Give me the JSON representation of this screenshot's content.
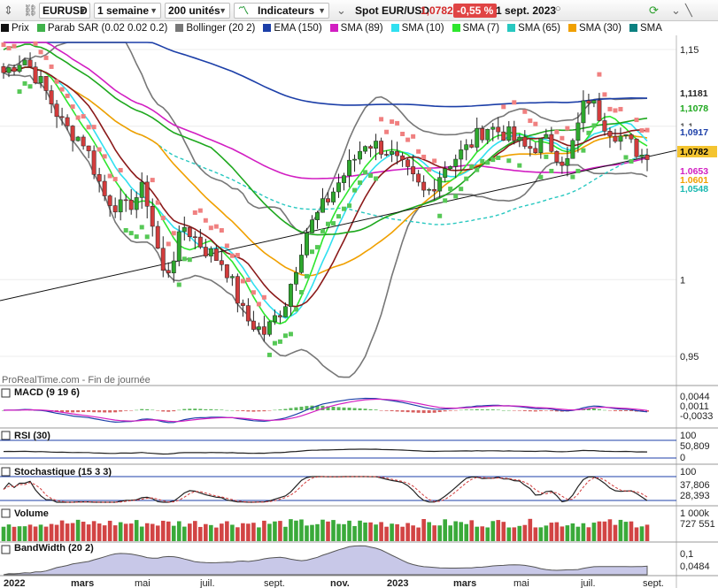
{
  "toolbar": {
    "instrument": "EURUSD",
    "period": "1 semaine",
    "units": "200 unités",
    "indicators": "Indicateurs",
    "spot_label": "Spot EUR/USD",
    "spot_price": "1,0782",
    "spot_change": "-0,55 %",
    "spot_date": "1 sept. 2023"
  },
  "legend": [
    {
      "label": "Prix",
      "color": "#111111"
    },
    {
      "label": "Parab SAR (0.02 0.02 0.2)",
      "color": "#3fb24a"
    },
    {
      "label": "Bollinger (20 2)",
      "color": "#777777"
    },
    {
      "label": "EMA (150)",
      "color": "#1c3fa8"
    },
    {
      "label": "SMA (89)",
      "color": "#d21ec2"
    },
    {
      "label": "SMA (10)",
      "color": "#30e0f0"
    },
    {
      "label": "SMA (7)",
      "color": "#2ee62e"
    },
    {
      "label": "SMA (65)",
      "color": "#28c8c0"
    },
    {
      "label": "SMA (30)",
      "color": "#f0a000"
    },
    {
      "label": "SMA",
      "color": "#0a8080"
    }
  ],
  "watermark": "ProRealTime.com - Fin de journée",
  "panes": {
    "macd": "MACD (9 19 6)",
    "rsi": "RSI (30)",
    "stoch": "Stochastique (15 3 3)",
    "volume": "Volume",
    "bandwidth": "BandWidth (20 2)"
  },
  "price_axis": {
    "ticks": [
      "1,15",
      "1,1",
      "1",
      "0,95"
    ],
    "labels": [
      {
        "text": "1,1181",
        "bg": "#ffffff",
        "fg": "#222222"
      },
      {
        "text": "1,1078",
        "bg": "#ffffff",
        "fg": "#1ea81e"
      },
      {
        "text": "1,0917",
        "bg": "#ffffff",
        "fg": "#1c3fa8"
      },
      {
        "text": "1,0782",
        "bg": "#f4c430",
        "fg": "#000000"
      },
      {
        "text": "1,0653",
        "bg": "#ffffff",
        "fg": "#d21ec2"
      },
      {
        "text": "1,0601",
        "bg": "#ffffff",
        "fg": "#f0a000"
      },
      {
        "text": "1,0548",
        "bg": "#ffffff",
        "fg": "#17b8b0"
      }
    ]
  },
  "macd_axis": {
    "top": "0,0044",
    "mid": "0,0011",
    "bottom": "-0,0033"
  },
  "rsi_axis": {
    "top": "100",
    "mid": "50,809",
    "bottom": "0"
  },
  "stoch_axis": {
    "top": "100",
    "mid": "37,806",
    "bottom": "28,393"
  },
  "volume_axis": {
    "top": "1 000k",
    "value": "727 551"
  },
  "bw_axis": {
    "top": "0,1",
    "value": "0,0484"
  },
  "x_labels": [
    "2022",
    "mars",
    "mai",
    "juil.",
    "sept.",
    "nov.",
    "2023",
    "mars",
    "mai",
    "juil.",
    "sept."
  ],
  "chart_data": {
    "type": "line",
    "symbol": "EURUSD",
    "timeframe": "1 semaine",
    "last_close": 1.0782,
    "x": [
      "2022",
      "mars",
      "mai",
      "juil.",
      "sept.",
      "nov.",
      "2023",
      "mars",
      "mai",
      "juil.",
      "sept."
    ],
    "ylim": [
      0.94,
      1.16
    ],
    "y_ticks": [
      1.15,
      1.1,
      1.0,
      0.95
    ],
    "close_path": [
      1.135,
      1.145,
      1.125,
      1.1,
      1.09,
      1.055,
      1.045,
      1.06,
      1.0,
      1.035,
      1.02,
      1.01,
      0.975,
      0.965,
      0.985,
      1.03,
      1.05,
      1.07,
      1.09,
      1.085,
      1.07,
      1.055,
      1.075,
      1.085,
      1.1,
      1.095,
      1.085,
      1.09,
      1.075,
      1.12,
      1.1,
      1.09,
      1.0782
    ],
    "series": [
      {
        "name": "Prix",
        "current": 1.0782
      },
      {
        "name": "Bollinger (20 2)",
        "upper": 1.1181
      },
      {
        "name": "SMA (7)",
        "current": 1.1078
      },
      {
        "name": "EMA (150)",
        "current": 1.0917
      },
      {
        "name": "SMA (89)",
        "current": 1.0653
      },
      {
        "name": "SMA (30)",
        "current": 1.0601
      },
      {
        "name": "SMA (65)",
        "current": 1.0548
      }
    ],
    "indicators": {
      "MACD (9 19 6)": {
        "values": [
          0.0044,
          0.0011,
          -0.0033
        ]
      },
      "RSI (30)": {
        "value": 50.809
      },
      "Stochastique (15 3 3)": {
        "values": [
          37.806,
          28.393
        ]
      },
      "Volume": {
        "value": 727551
      },
      "BandWidth (20 2)": {
        "value": 0.0484
      }
    }
  }
}
